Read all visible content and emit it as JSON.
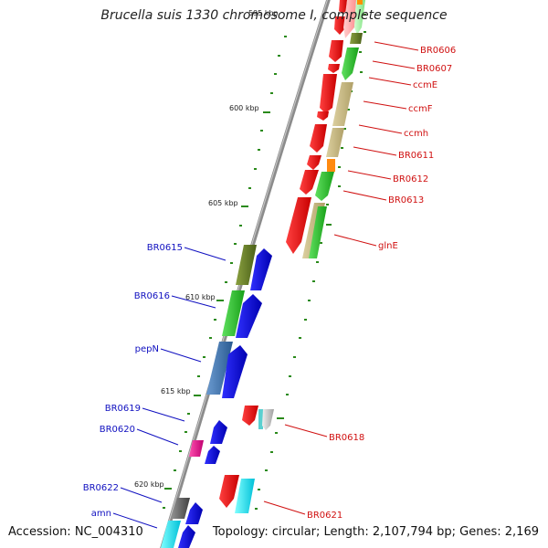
{
  "title": "Brucella suis 1330 chromosome I, complete sequence",
  "footer": {
    "accession": "Accession: NC_004310",
    "topology": "Topology: circular; Length: 2,107,794 bp; Genes: 2,169"
  },
  "colors": {
    "backbone": "#8a8a8a",
    "ticks": "#2a8a1a",
    "right_labels": "#d01010",
    "left_labels": "#1010c0"
  },
  "scale_labels": [
    "595 kbp",
    "600 kbp",
    "605 kbp",
    "610 kbp",
    "615 kbp",
    "620 kbp"
  ],
  "genes_right": [
    {
      "label": "BR0606"
    },
    {
      "label": "BR0607"
    },
    {
      "label": "ccmE"
    },
    {
      "label": "ccmF"
    },
    {
      "label": "ccmh"
    },
    {
      "label": "BR0611"
    },
    {
      "label": "BR0612"
    },
    {
      "label": "BR0613"
    },
    {
      "label": "glnE"
    },
    {
      "label": "BR0618"
    },
    {
      "label": "BR0621"
    }
  ],
  "genes_left": [
    {
      "label": "BR0615"
    },
    {
      "label": "BR0616"
    },
    {
      "label": "pepN"
    },
    {
      "label": "BR0619"
    },
    {
      "label": "BR0620"
    },
    {
      "label": "BR0622"
    },
    {
      "label": "amn"
    }
  ]
}
